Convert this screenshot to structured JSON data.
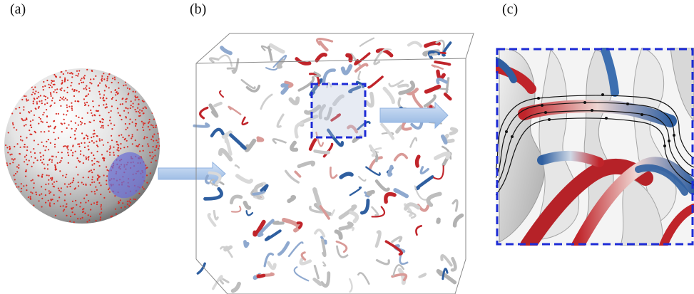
{
  "panels": {
    "a": {
      "label": "(a)"
    },
    "b": {
      "label": "(b)"
    },
    "c": {
      "label": "(c)"
    }
  },
  "colors": {
    "sphere_dots": "#d82c25",
    "selection_disc": "#6b6fd6",
    "arrow": "#a9c6ec",
    "zoom_box": "#1d2bd6",
    "vortex_red": "#c0242a",
    "vortex_blue": "#2f5fa0",
    "isosurface": "#d9d9d9"
  }
}
